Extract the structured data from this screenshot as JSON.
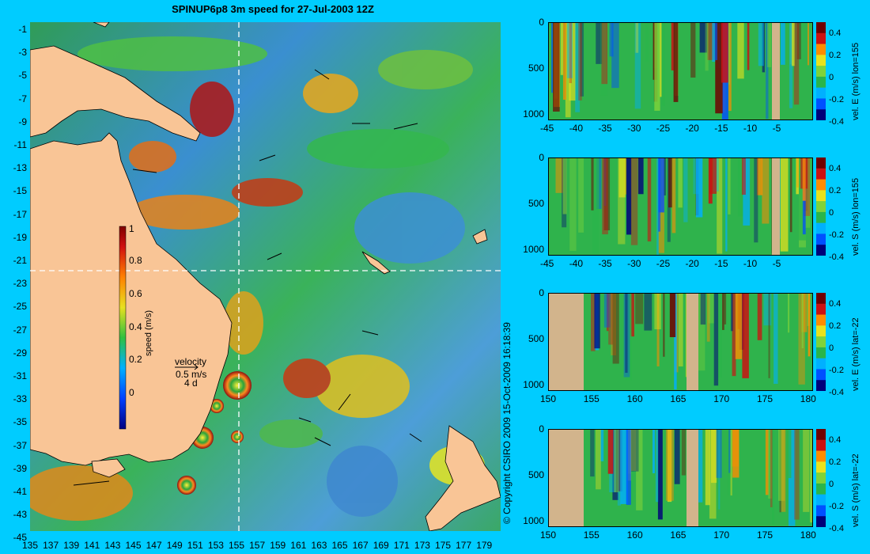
{
  "title": "SPINUP6p8 3m speed for 27-Jul-2003 12Z",
  "copyright": "© Copyright CSIRO 2009  15-Oct-2009 16:18:39",
  "colors": {
    "background": "#00ccff",
    "land": "#f9c596",
    "section_land": "#d2b48c"
  },
  "chart_data": [
    {
      "type": "heatmap",
      "name": "map",
      "x_ticks": [
        "135",
        "137",
        "139",
        "141",
        "143",
        "145",
        "147",
        "149",
        "151",
        "153",
        "155",
        "157",
        "159",
        "161",
        "163",
        "165",
        "167",
        "169",
        "171",
        "173",
        "175",
        "177",
        "179"
      ],
      "y_ticks": [
        "-1",
        "-3",
        "-5",
        "-7",
        "-9",
        "-11",
        "-13",
        "-15",
        "-17",
        "-19",
        "-21",
        "-23",
        "-25",
        "-27",
        "-29",
        "-31",
        "-33",
        "-35",
        "-37",
        "-39",
        "-41",
        "-43",
        "-45"
      ],
      "colorbar": {
        "label": "speed (m/s)",
        "ticks": [
          "1",
          "0.8",
          "0.6",
          "0.4",
          "0.2",
          "0"
        ],
        "range": [
          0,
          1
        ]
      },
      "velocity_legend": {
        "label": "velocity",
        "scale": "0.5 m/s",
        "duration": "4 d"
      },
      "section_lines": {
        "lon": 155,
        "lat": -22
      }
    },
    {
      "type": "heatmap",
      "name": "vel E lon=155",
      "x_ticks": [
        "-45",
        "-40",
        "-35",
        "-30",
        "-25",
        "-20",
        "-15",
        "-10",
        "-5"
      ],
      "y_ticks": [
        "0",
        "500",
        "1000"
      ],
      "colorbar": {
        "label": "vel. E (m/s) lon=155",
        "ticks": [
          "0.4",
          "0.2",
          "0",
          "-0.2",
          "-0.4"
        ]
      }
    },
    {
      "type": "heatmap",
      "name": "vel S lon=155",
      "x_ticks": [
        "-45",
        "-40",
        "-35",
        "-30",
        "-25",
        "-20",
        "-15",
        "-10",
        "-5"
      ],
      "y_ticks": [
        "0",
        "500",
        "1000"
      ],
      "colorbar": {
        "label": "vel. S (m/s) lon=155",
        "ticks": [
          "0.4",
          "0.2",
          "0",
          "-0.2",
          "-0.4"
        ]
      }
    },
    {
      "type": "heatmap",
      "name": "vel E lat=-22",
      "x_ticks": [
        "150",
        "155",
        "160",
        "165",
        "170",
        "175",
        "180"
      ],
      "y_ticks": [
        "0",
        "500",
        "1000"
      ],
      "colorbar": {
        "label": "vel. E (m/s) lat=-22",
        "ticks": [
          "0.4",
          "0.2",
          "0",
          "-0.2",
          "-0.4"
        ]
      }
    },
    {
      "type": "heatmap",
      "name": "vel S lat=-22",
      "x_ticks": [
        "150",
        "155",
        "160",
        "165",
        "170",
        "175",
        "180"
      ],
      "y_ticks": [
        "0",
        "500",
        "1000"
      ],
      "colorbar": {
        "label": "vel. S (m/s) lat=-22",
        "ticks": [
          "0.4",
          "0.2",
          "0",
          "-0.2",
          "-0.4"
        ]
      }
    }
  ]
}
